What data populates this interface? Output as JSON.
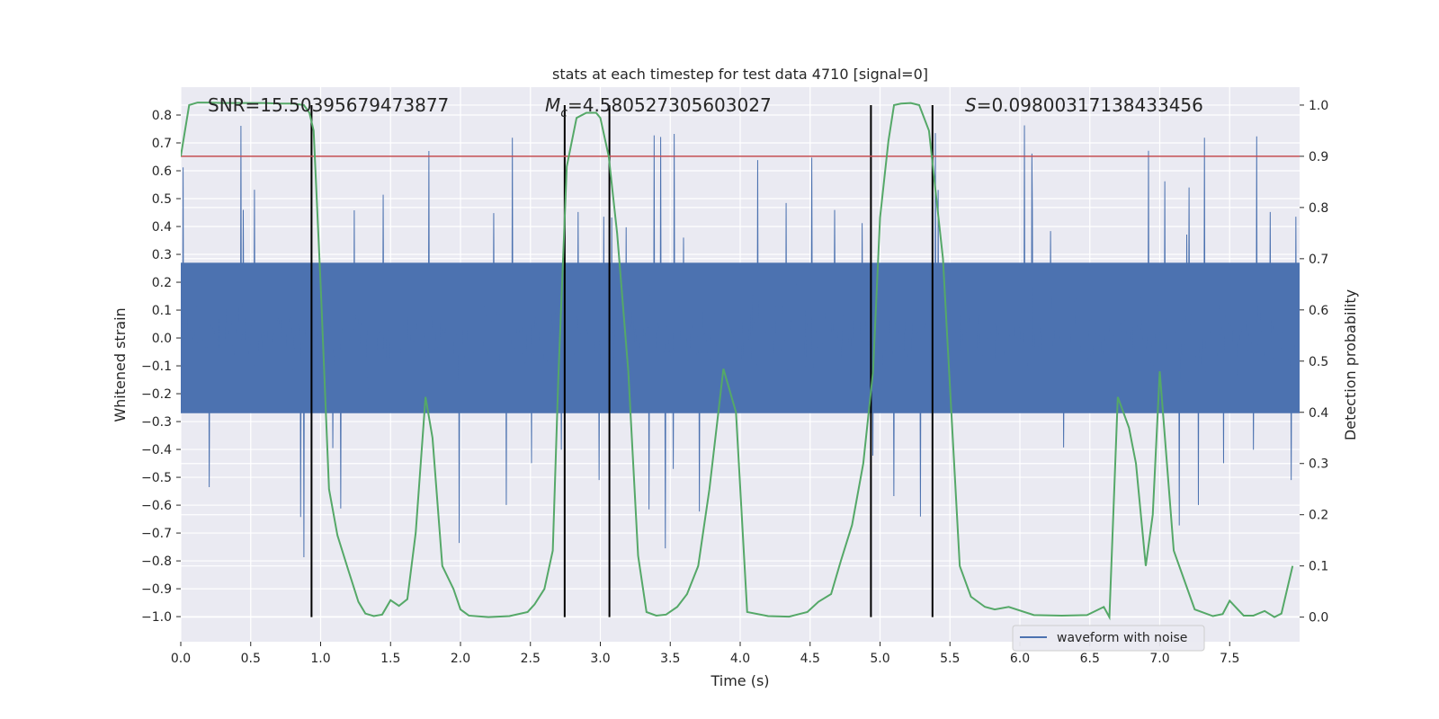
{
  "chart_data": {
    "type": "line",
    "title": "stats at each timestep for test data 4710 [signal=0]",
    "xlabel": "Time (s)",
    "ylabel": "Whitened strain",
    "y2label": "Detection probability",
    "xlim": [
      0.0,
      8.0
    ],
    "ylim": [
      -1.09,
      0.9
    ],
    "y2lim": [
      -0.048,
      1.035
    ],
    "x_ticks": [
      "0.0",
      "0.5",
      "1.0",
      "1.5",
      "2.0",
      "2.5",
      "3.0",
      "3.5",
      "4.0",
      "4.5",
      "5.0",
      "5.5",
      "6.0",
      "6.5",
      "7.0",
      "7.5"
    ],
    "y_ticks": [
      "0.8",
      "0.7",
      "0.6",
      "0.5",
      "0.4",
      "0.3",
      "0.2",
      "0.1",
      "0.0",
      "−0.1",
      "−0.2",
      "−0.3",
      "−0.4",
      "−0.5",
      "−0.6",
      "−0.7",
      "−0.8",
      "−0.9",
      "−1.0"
    ],
    "y2_ticks": [
      "1.0",
      "0.9",
      "0.8",
      "0.7",
      "0.6",
      "0.5",
      "0.4",
      "0.3",
      "0.2",
      "0.1",
      "0.0"
    ],
    "grid": true,
    "legend_position": "lower-right",
    "annotations": {
      "snr": "SNR=15.50395679473877",
      "mc_symbol": "M",
      "mc_subscript": "c",
      "mc_value": "=4.580527305603027",
      "s_symbol": "S",
      "s_value": "=0.09800317138433456"
    },
    "colors": {
      "waveform": "#4c72b0",
      "probability": "#55a868",
      "threshold": "#c44e52",
      "markers": "#000000",
      "plot_background": "#eaeaf2",
      "grid": "#ffffff"
    },
    "threshold": 0.9,
    "vertical_markers": [
      0.935,
      2.745,
      3.065,
      4.935,
      5.375
    ],
    "series": [
      {
        "name": "waveform with noise",
        "axis": "left",
        "style": "dense-noise",
        "x_range": [
          0.0,
          8.0
        ],
        "core_amplitude": 0.27,
        "spike_max": 0.8
      },
      {
        "axis": "right",
        "x": [
          0.0,
          0.06,
          0.12,
          0.2,
          0.3,
          0.4,
          0.5,
          0.6,
          0.7,
          0.8,
          0.88,
          0.92,
          0.95,
          1.0,
          1.06,
          1.12,
          1.2,
          1.27,
          1.32,
          1.38,
          1.44,
          1.5,
          1.56,
          1.62,
          1.68,
          1.75,
          1.8,
          1.87,
          1.95,
          2.0,
          2.06,
          2.2,
          2.35,
          2.48,
          2.53,
          2.6,
          2.66,
          2.7,
          2.76,
          2.83,
          2.9,
          2.97,
          3.0,
          3.06,
          3.12,
          3.2,
          3.27,
          3.33,
          3.4,
          3.47,
          3.55,
          3.62,
          3.7,
          3.78,
          3.88,
          3.97,
          4.05,
          4.2,
          4.35,
          4.48,
          4.56,
          4.65,
          4.72,
          4.8,
          4.88,
          4.95,
          5.0,
          5.06,
          5.1,
          5.15,
          5.22,
          5.28,
          5.35,
          5.45,
          5.57,
          5.65,
          5.75,
          5.82,
          5.92,
          6.1,
          6.3,
          6.48,
          6.6,
          6.64,
          6.7,
          6.78,
          6.83,
          6.9,
          6.95,
          7.0,
          7.1,
          7.25,
          7.38,
          7.45,
          7.5,
          7.6,
          7.67,
          7.75,
          7.82,
          7.87,
          7.95
        ],
        "y": [
          0.9,
          1.0,
          1.005,
          1.005,
          1.004,
          1.004,
          1.004,
          1.004,
          1.003,
          1.003,
          1.0,
          0.985,
          0.95,
          0.65,
          0.25,
          0.16,
          0.09,
          0.03,
          0.007,
          0.002,
          0.005,
          0.033,
          0.022,
          0.035,
          0.165,
          0.43,
          0.35,
          0.1,
          0.055,
          0.015,
          0.003,
          0.0,
          0.002,
          0.01,
          0.025,
          0.055,
          0.13,
          0.47,
          0.88,
          0.975,
          0.985,
          0.985,
          0.975,
          0.9,
          0.75,
          0.48,
          0.12,
          0.01,
          0.003,
          0.005,
          0.02,
          0.045,
          0.1,
          0.25,
          0.485,
          0.4,
          0.01,
          0.002,
          0.001,
          0.01,
          0.03,
          0.045,
          0.11,
          0.18,
          0.3,
          0.48,
          0.78,
          0.93,
          1.0,
          1.003,
          1.004,
          1.0,
          0.95,
          0.7,
          0.1,
          0.04,
          0.02,
          0.015,
          0.02,
          0.004,
          0.003,
          0.004,
          0.02,
          0.0,
          0.43,
          0.37,
          0.3,
          0.1,
          0.2,
          0.48,
          0.13,
          0.015,
          0.002,
          0.006,
          0.032,
          0.003,
          0.003,
          0.012,
          0.0,
          0.007,
          0.1
        ]
      }
    ]
  }
}
